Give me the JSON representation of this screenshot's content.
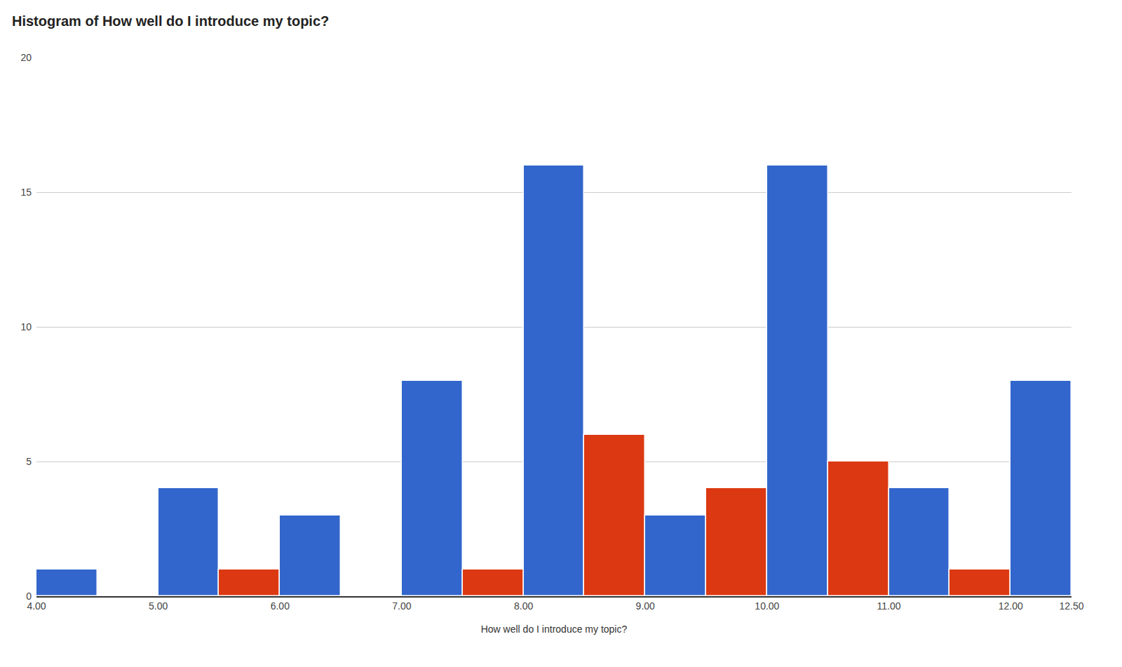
{
  "chart_data": {
    "type": "histogram",
    "title": "Histogram of How well do I introduce my topic?",
    "x_label": "How well do I introduce my topic?",
    "bins": [
      4,
      4.5,
      5,
      5.5,
      6,
      6.5,
      7,
      7.5,
      8,
      8.5,
      9,
      9.5,
      10,
      10.5,
      11,
      11.5,
      12,
      12.5
    ],
    "values": [
      1,
      0,
      4,
      1,
      3,
      0,
      8,
      1,
      16,
      6,
      3,
      4,
      16,
      5,
      4,
      1,
      8
    ],
    "colors": [
      "#3366cc",
      "#dc3912",
      "#3366cc",
      "#dc3912",
      "#3366cc",
      "#dc3912",
      "#3366cc",
      "#dc3912",
      "#3366cc",
      "#dc3912",
      "#3366cc",
      "#dc3912",
      "#3366cc",
      "#dc3912",
      "#3366cc",
      "#dc3912",
      "#3366cc"
    ],
    "xlim": [
      4,
      12.5
    ],
    "xticks": [
      {
        "value": 4,
        "label": "4.00"
      },
      {
        "value": 5,
        "label": "5.00"
      },
      {
        "value": 6,
        "label": "6.00"
      },
      {
        "value": 7,
        "label": "7.00"
      },
      {
        "value": 8,
        "label": "8.00"
      },
      {
        "value": 9,
        "label": "9.00"
      },
      {
        "value": 10,
        "label": "10.00"
      },
      {
        "value": 11,
        "label": "11.00"
      },
      {
        "value": 12,
        "label": "12.00"
      },
      {
        "value": 12.5,
        "label": "12.50"
      }
    ],
    "ylim": [
      0,
      20
    ],
    "yticks": [
      0,
      5,
      10,
      15,
      20
    ],
    "grid": true
  }
}
